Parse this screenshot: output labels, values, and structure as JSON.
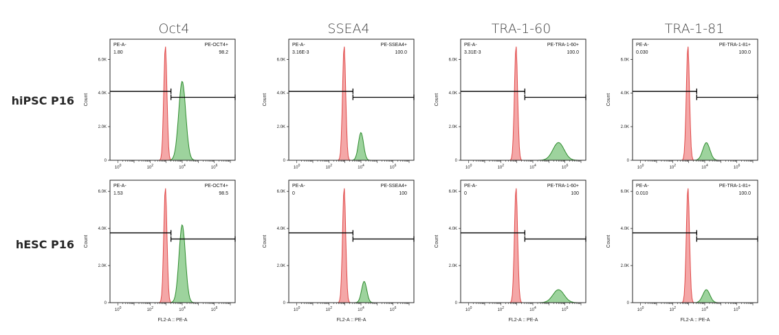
{
  "figure": {
    "columns": [
      "Oct4",
      "SSEA4",
      "TRA-1-60",
      "TRA-1-81"
    ],
    "rows": [
      "hiPSC P16",
      "hESC P16"
    ],
    "x_axis_label": "FL2-A :: PE-A",
    "y_axis_label": "Count",
    "colors": {
      "control": "#f08a8a",
      "control_edge": "#e04848",
      "stained": "#7cc47c",
      "stained_edge": "#2e8b2e"
    }
  },
  "chart_data": [
    {
      "type": "histogram",
      "row": "hiPSC P16",
      "marker": "Oct4",
      "xscale": "log",
      "x_ticks": [
        "10^0",
        "10^2",
        "10^4",
        "10^6"
      ],
      "y_ticks": [
        "0",
        "2.0K",
        "4.0K",
        "6.0K"
      ],
      "ylim": [
        0,
        7200
      ],
      "xlim_log10": [
        -0.5,
        7.3
      ],
      "gate_negative": {
        "label": "PE-A-",
        "value": "1.80"
      },
      "gate_positive": {
        "label": "PE-OCT4+",
        "value": "98.2"
      },
      "control": {
        "peak_log10": 2.95,
        "width": 0.1,
        "peak_count": 6800
      },
      "stained": {
        "peak_log10": 4.0,
        "width": 0.22,
        "peak_count": 4700
      },
      "gate_cutoff_log10": 3.3
    },
    {
      "type": "histogram",
      "row": "hiPSC P16",
      "marker": "SSEA4",
      "xscale": "log",
      "x_ticks": [
        "10^0",
        "10^2",
        "10^4",
        "10^6"
      ],
      "y_ticks": [
        "0",
        "2.0K",
        "4.0K",
        "6.0K"
      ],
      "ylim": [
        0,
        7200
      ],
      "xlim_log10": [
        -0.5,
        7.3
      ],
      "gate_negative": {
        "label": "PE-A-",
        "value": "3.16E-3"
      },
      "gate_positive": {
        "label": "PE-SSEA4+",
        "value": "100.0"
      },
      "control": {
        "peak_log10": 2.95,
        "width": 0.1,
        "peak_count": 6800
      },
      "stained": {
        "peak_log10": 4.0,
        "width": 0.16,
        "peak_count": 1650
      },
      "gate_cutoff_log10": 3.5
    },
    {
      "type": "histogram",
      "row": "hiPSC P16",
      "marker": "TRA-1-60",
      "xscale": "log",
      "x_ticks": [
        "10^0",
        "10^2",
        "10^4",
        "10^6"
      ],
      "y_ticks": [
        "0",
        "2.0K",
        "4.0K",
        "6.0K"
      ],
      "ylim": [
        0,
        7200
      ],
      "xlim_log10": [
        -0.5,
        7.3
      ],
      "gate_negative": {
        "label": "PE-A-",
        "value": "3.31E-3"
      },
      "gate_positive": {
        "label": "PE-TRA-1-60+",
        "value": "100.0"
      },
      "control": {
        "peak_log10": 2.95,
        "width": 0.1,
        "peak_count": 6800
      },
      "stained": {
        "peak_log10": 5.6,
        "width": 0.35,
        "peak_count": 1050
      },
      "gate_cutoff_log10": 3.5
    },
    {
      "type": "histogram",
      "row": "hiPSC P16",
      "marker": "TRA-1-81",
      "xscale": "log",
      "x_ticks": [
        "10^0",
        "10^2",
        "10^4",
        "10^6"
      ],
      "y_ticks": [
        "0",
        "2.0K",
        "4.0K",
        "6.0K"
      ],
      "ylim": [
        0,
        7200
      ],
      "xlim_log10": [
        -0.5,
        7.3
      ],
      "gate_negative": {
        "label": "PE-A-",
        "value": "0.030"
      },
      "gate_positive": {
        "label": "PE-TRA-1-81+",
        "value": "100.0"
      },
      "control": {
        "peak_log10": 2.95,
        "width": 0.1,
        "peak_count": 6800
      },
      "stained": {
        "peak_log10": 4.1,
        "width": 0.22,
        "peak_count": 1050
      },
      "gate_cutoff_log10": 3.5
    },
    {
      "type": "histogram",
      "row": "hESC P16",
      "marker": "Oct4",
      "xscale": "log",
      "x_ticks": [
        "10^0",
        "10^2",
        "10^4",
        "10^6"
      ],
      "y_ticks": [
        "0",
        "2.0K",
        "4.0K",
        "6.0K"
      ],
      "ylim": [
        0,
        6600
      ],
      "xlim_log10": [
        -0.5,
        7.3
      ],
      "gate_negative": {
        "label": "PE-A-",
        "value": "1.53"
      },
      "gate_positive": {
        "label": "PE-OCT4+",
        "value": "98.5"
      },
      "control": {
        "peak_log10": 2.95,
        "width": 0.1,
        "peak_count": 6200
      },
      "stained": {
        "peak_log10": 4.0,
        "width": 0.2,
        "peak_count": 4200
      },
      "gate_cutoff_log10": 3.3
    },
    {
      "type": "histogram",
      "row": "hESC P16",
      "marker": "SSEA4",
      "xscale": "log",
      "x_ticks": [
        "10^0",
        "10^2",
        "10^4",
        "10^6"
      ],
      "y_ticks": [
        "0",
        "2.0K",
        "4.0K",
        "6.0K"
      ],
      "ylim": [
        0,
        6600
      ],
      "xlim_log10": [
        -0.5,
        7.3
      ],
      "gate_negative": {
        "label": "PE-A-",
        "value": "0"
      },
      "gate_positive": {
        "label": "PE-SSEA4+",
        "value": "100"
      },
      "control": {
        "peak_log10": 2.95,
        "width": 0.1,
        "peak_count": 6200
      },
      "stained": {
        "peak_log10": 4.2,
        "width": 0.16,
        "peak_count": 1150
      },
      "gate_cutoff_log10": 3.5
    },
    {
      "type": "histogram",
      "row": "hESC P16",
      "marker": "TRA-1-60",
      "xscale": "log",
      "x_ticks": [
        "10^0",
        "10^2",
        "10^4",
        "10^6"
      ],
      "y_ticks": [
        "0",
        "2.0K",
        "4.0K",
        "6.0K"
      ],
      "ylim": [
        0,
        6600
      ],
      "xlim_log10": [
        -0.5,
        7.3
      ],
      "gate_negative": {
        "label": "PE-A-",
        "value": "0"
      },
      "gate_positive": {
        "label": "PE-TRA-1-60+",
        "value": "100"
      },
      "control": {
        "peak_log10": 2.95,
        "width": 0.1,
        "peak_count": 6200
      },
      "stained": {
        "peak_log10": 5.6,
        "width": 0.35,
        "peak_count": 700
      },
      "gate_cutoff_log10": 3.5
    },
    {
      "type": "histogram",
      "row": "hESC P16",
      "marker": "TRA-1-81",
      "xscale": "log",
      "x_ticks": [
        "10^0",
        "10^2",
        "10^4",
        "10^6"
      ],
      "y_ticks": [
        "0",
        "2.0K",
        "4.0K",
        "6.0K"
      ],
      "ylim": [
        0,
        6600
      ],
      "xlim_log10": [
        -0.5,
        7.3
      ],
      "gate_negative": {
        "label": "PE-A-",
        "value": "0.010"
      },
      "gate_positive": {
        "label": "PE-TRA-1-81+",
        "value": "100.0"
      },
      "control": {
        "peak_log10": 2.95,
        "width": 0.1,
        "peak_count": 6200
      },
      "stained": {
        "peak_log10": 4.1,
        "width": 0.22,
        "peak_count": 700
      },
      "gate_cutoff_log10": 3.5
    }
  ]
}
